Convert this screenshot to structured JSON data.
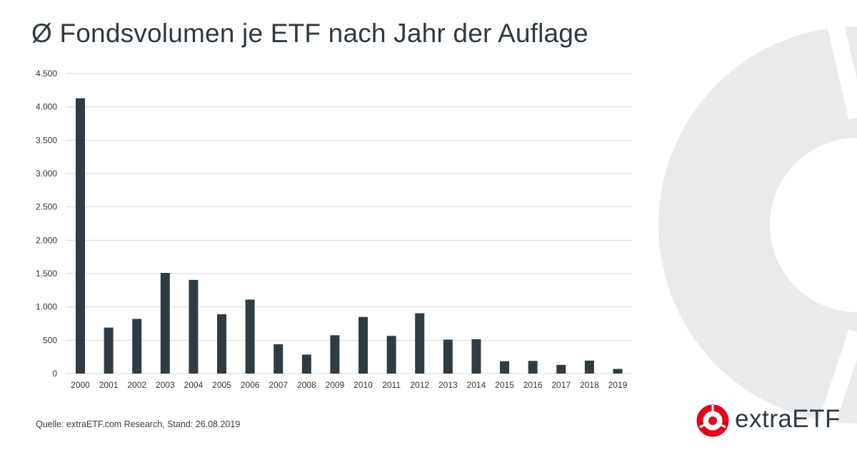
{
  "title": "Ø Fondsvolumen je ETF nach Jahr der Auflage",
  "source": "Quelle: extraETF.com Research, Stand: 26.08.2019",
  "logo": {
    "text": "extraETF",
    "icon": "extraetf-logo-icon",
    "accent_color": "#e3051b"
  },
  "colors": {
    "bar": "#2f3c43",
    "grid": "#d9d9d9",
    "decor": "#e9eaeb"
  },
  "chart_data": {
    "type": "bar",
    "title": "Ø Fondsvolumen je ETF nach Jahr der Auflage",
    "categories": [
      "2000",
      "2001",
      "2002",
      "2003",
      "2004",
      "2005",
      "2006",
      "2007",
      "2008",
      "2009",
      "2010",
      "2011",
      "2012",
      "2013",
      "2014",
      "2015",
      "2016",
      "2017",
      "2018",
      "2019"
    ],
    "values": [
      4130,
      690,
      820,
      1510,
      1405,
      890,
      1110,
      440,
      285,
      575,
      850,
      565,
      905,
      510,
      515,
      185,
      190,
      130,
      195,
      70
    ],
    "ylim": [
      0,
      4500
    ],
    "yticks": [
      0,
      500,
      1000,
      1500,
      2000,
      2500,
      3000,
      3500,
      4000,
      4500
    ],
    "ytick_labels": [
      "0",
      "500",
      "1.000",
      "1.500",
      "2.000",
      "2.500",
      "3.000",
      "3.500",
      "4.000",
      "4.500"
    ],
    "xlabel": "",
    "ylabel": "",
    "grid": true,
    "legend": "none"
  }
}
